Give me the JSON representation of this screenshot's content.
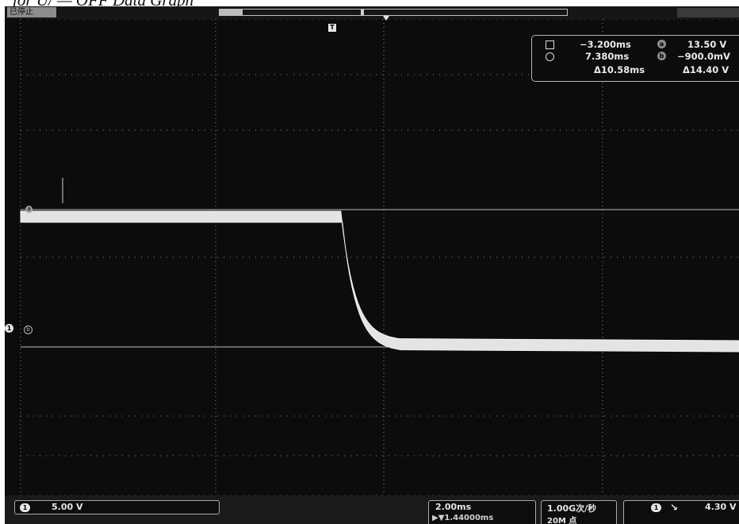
{
  "caption": "for U/ — OFF Data Graph",
  "status": {
    "run_state": "已停止"
  },
  "trigger_marker": "T",
  "markers": {
    "ch1_ground": "1",
    "cursor_a": "a",
    "cursor_b": "b"
  },
  "cursor_readout": {
    "time1": "−3.200ms",
    "time2": "7.380ms",
    "delta_time": "Δ10.58ms",
    "volt1": "13.50 V",
    "volt2": "−900.0mV",
    "delta_volt": "Δ14.40 V",
    "icon_a": "a",
    "icon_b": "b"
  },
  "bottom": {
    "ch1_badge": "1",
    "ch1_scale": "5.00 V",
    "timebase": "2.00ms",
    "delay_position": "▶▼1.44000ms",
    "sample_rate": "1.00G次/秒",
    "record_length": "20M 点",
    "trigger_source": "1",
    "trigger_slope": "↘",
    "trigger_level": "4.30 V"
  },
  "waveform": {
    "high_level_v": 13.5,
    "low_level_v": -0.9,
    "fall_start_ms": -1.1,
    "settle_ms": 0.4
  },
  "colors": {
    "screen_bg": "#0c0c0c",
    "trace": "#e4e4e4",
    "grid": "#8a8a8a"
  }
}
